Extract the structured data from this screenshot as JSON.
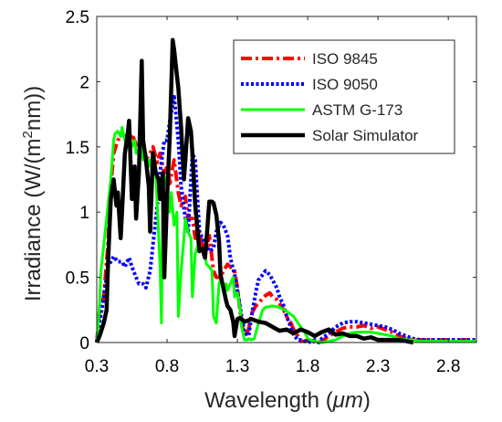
{
  "chart_data": {
    "type": "line",
    "title": "",
    "xlabel_prefix": "Wavelength (",
    "xlabel_unit": "μm",
    "xlabel_suffix": ")",
    "ylabel_prefix": "Irradiance (W/(m",
    "ylabel_sup": "2",
    "ylabel_suffix": "nm))",
    "xlim": [
      0.3,
      3.0
    ],
    "ylim": [
      0,
      2.5
    ],
    "xticks": [
      0.3,
      0.8,
      1.3,
      1.8,
      2.3,
      2.8
    ],
    "xtick_labels": [
      "0.3",
      "0.8",
      "1.3",
      "1.8",
      "2.3",
      "2.8"
    ],
    "yticks": [
      0,
      0.5,
      1,
      1.5,
      2,
      2.5
    ],
    "ytick_labels": [
      "0",
      "0.5",
      "1",
      "1.5",
      "2",
      "2.5"
    ],
    "legend_position": "top-right",
    "series": [
      {
        "name": "ISO 9845",
        "color": "#ff0000",
        "dash": "dashdot",
        "x": [
          0.3,
          0.32,
          0.35,
          0.38,
          0.4,
          0.42,
          0.45,
          0.48,
          0.5,
          0.53,
          0.55,
          0.58,
          0.6,
          0.63,
          0.65,
          0.68,
          0.7,
          0.73,
          0.75,
          0.78,
          0.8,
          0.82,
          0.85,
          0.88,
          0.9,
          0.93,
          0.95,
          0.98,
          1.0,
          1.03,
          1.05,
          1.08,
          1.1,
          1.13,
          1.15,
          1.18,
          1.2,
          1.23,
          1.25,
          1.28,
          1.3,
          1.33,
          1.35,
          1.38,
          1.4,
          1.43,
          1.45,
          1.48,
          1.5,
          1.53,
          1.55,
          1.58,
          1.6,
          1.63,
          1.65,
          1.68,
          1.7,
          1.73,
          1.75,
          1.78,
          1.8,
          1.83,
          1.85,
          1.88,
          1.9,
          1.95,
          2.0,
          2.05,
          2.1,
          2.15,
          2.2,
          2.25,
          2.3,
          2.35,
          2.4,
          2.45,
          2.5,
          2.55,
          2.6,
          2.7,
          2.8,
          2.9,
          3.0
        ],
        "y": [
          0.0,
          0.25,
          0.35,
          0.75,
          1.2,
          1.45,
          1.55,
          1.6,
          1.58,
          1.55,
          1.6,
          1.52,
          1.5,
          1.42,
          1.4,
          1.45,
          1.5,
          1.38,
          1.45,
          1.3,
          1.35,
          1.22,
          1.4,
          1.15,
          1.05,
          1.12,
          0.95,
          0.95,
          0.8,
          0.85,
          0.75,
          0.72,
          0.82,
          0.55,
          0.5,
          0.5,
          0.55,
          0.6,
          0.58,
          0.55,
          0.42,
          0.15,
          0.05,
          0.1,
          0.22,
          0.28,
          0.3,
          0.34,
          0.36,
          0.38,
          0.35,
          0.33,
          0.3,
          0.25,
          0.2,
          0.15,
          0.1,
          0.05,
          0.01,
          0.01,
          0.02,
          0.0,
          0.01,
          0.0,
          0.01,
          0.05,
          0.08,
          0.11,
          0.12,
          0.12,
          0.13,
          0.11,
          0.12,
          0.1,
          0.08,
          0.05,
          0.03,
          0.02,
          0.02,
          0.02,
          0.02,
          0.02,
          0.02
        ]
      },
      {
        "name": "ISO 9050",
        "color": "#0000ff",
        "dash": "dotted",
        "x": [
          0.3,
          0.32,
          0.35,
          0.38,
          0.4,
          0.42,
          0.45,
          0.48,
          0.5,
          0.53,
          0.55,
          0.58,
          0.6,
          0.63,
          0.65,
          0.68,
          0.7,
          0.73,
          0.75,
          0.78,
          0.8,
          0.82,
          0.85,
          0.88,
          0.9,
          0.93,
          0.95,
          0.98,
          1.0,
          1.03,
          1.05,
          1.08,
          1.1,
          1.13,
          1.15,
          1.18,
          1.2,
          1.23,
          1.25,
          1.28,
          1.3,
          1.33,
          1.35,
          1.38,
          1.4,
          1.43,
          1.45,
          1.48,
          1.5,
          1.53,
          1.55,
          1.58,
          1.6,
          1.63,
          1.65,
          1.68,
          1.7,
          1.73,
          1.75,
          1.78,
          1.8,
          1.83,
          1.85,
          1.88,
          1.9,
          1.95,
          2.0,
          2.05,
          2.1,
          2.15,
          2.2,
          2.25,
          2.3,
          2.35,
          2.4,
          2.45,
          2.5,
          2.55,
          2.6,
          2.7,
          2.8,
          2.9,
          3.0
        ],
        "y": [
          0.0,
          0.15,
          0.35,
          0.58,
          0.62,
          0.66,
          0.62,
          0.62,
          0.58,
          0.65,
          0.58,
          0.5,
          0.45,
          0.45,
          0.42,
          0.55,
          0.75,
          1.05,
          1.3,
          1.55,
          1.55,
          1.7,
          1.9,
          1.55,
          1.2,
          0.95,
          0.85,
          1.45,
          1.4,
          0.85,
          0.8,
          0.75,
          0.7,
          0.72,
          0.85,
          0.92,
          0.9,
          0.82,
          0.65,
          0.52,
          0.4,
          0.2,
          0.08,
          0.05,
          0.2,
          0.38,
          0.48,
          0.52,
          0.55,
          0.52,
          0.48,
          0.42,
          0.35,
          0.28,
          0.2,
          0.12,
          0.06,
          0.02,
          0.02,
          0.01,
          0.0,
          0.01,
          0.02,
          0.0,
          0.03,
          0.07,
          0.12,
          0.15,
          0.16,
          0.16,
          0.15,
          0.14,
          0.13,
          0.12,
          0.1,
          0.07,
          0.05,
          0.03,
          0.02,
          0.02,
          0.02,
          0.02,
          0.02
        ]
      },
      {
        "name": "ASTM G-173",
        "color": "#00ff00",
        "dash": "solid",
        "x": [
          0.3,
          0.32,
          0.33,
          0.35,
          0.37,
          0.38,
          0.4,
          0.42,
          0.43,
          0.45,
          0.47,
          0.48,
          0.5,
          0.52,
          0.53,
          0.55,
          0.57,
          0.58,
          0.6,
          0.62,
          0.63,
          0.65,
          0.67,
          0.68,
          0.7,
          0.72,
          0.73,
          0.75,
          0.76,
          0.77,
          0.78,
          0.8,
          0.82,
          0.83,
          0.85,
          0.87,
          0.88,
          0.9,
          0.92,
          0.93,
          0.95,
          0.97,
          0.98,
          1.0,
          1.02,
          1.03,
          1.05,
          1.07,
          1.08,
          1.1,
          1.12,
          1.13,
          1.15,
          1.17,
          1.18,
          1.2,
          1.22,
          1.23,
          1.25,
          1.27,
          1.28,
          1.3,
          1.32,
          1.33,
          1.35,
          1.37,
          1.38,
          1.4,
          1.42,
          1.45,
          1.48,
          1.5,
          1.55,
          1.6,
          1.65,
          1.7,
          1.75,
          1.78,
          1.8,
          1.82,
          1.85,
          1.9,
          1.95,
          2.0,
          2.05,
          2.1,
          2.15,
          2.2,
          2.25,
          2.3,
          2.35,
          2.4,
          2.45,
          2.5,
          2.55,
          2.6,
          2.7,
          2.8,
          2.9,
          3.0
        ],
        "y": [
          0.0,
          0.3,
          0.55,
          0.75,
          0.95,
          1.05,
          1.25,
          1.55,
          1.6,
          1.62,
          1.58,
          1.65,
          1.55,
          1.5,
          1.58,
          1.5,
          1.55,
          1.45,
          1.48,
          1.52,
          1.4,
          1.45,
          1.35,
          1.4,
          1.3,
          1.3,
          1.05,
          0.6,
          0.15,
          1.1,
          1.28,
          1.2,
          1.0,
          1.15,
          0.9,
          1.0,
          0.2,
          0.55,
          0.8,
          0.95,
          0.85,
          0.8,
          0.35,
          0.68,
          0.75,
          0.7,
          0.72,
          0.68,
          0.6,
          0.58,
          0.55,
          0.2,
          0.15,
          0.45,
          0.48,
          0.42,
          0.45,
          0.4,
          0.45,
          0.5,
          0.35,
          0.38,
          0.25,
          0.12,
          0.02,
          0.02,
          0.03,
          0.02,
          0.03,
          0.15,
          0.25,
          0.27,
          0.28,
          0.27,
          0.24,
          0.2,
          0.12,
          0.08,
          0.03,
          0.02,
          0.01,
          0.0,
          0.01,
          0.02,
          0.05,
          0.07,
          0.08,
          0.08,
          0.08,
          0.07,
          0.06,
          0.05,
          0.03,
          0.02,
          0.02,
          0.01,
          0.01,
          0.01,
          0.01,
          0.01
        ]
      },
      {
        "name": "Solar Simulator",
        "color": "#000000",
        "dash": "solid",
        "x": [
          0.3,
          0.32,
          0.35,
          0.37,
          0.38,
          0.4,
          0.42,
          0.44,
          0.45,
          0.47,
          0.48,
          0.5,
          0.52,
          0.53,
          0.55,
          0.57,
          0.58,
          0.6,
          0.62,
          0.63,
          0.65,
          0.67,
          0.68,
          0.7,
          0.72,
          0.74,
          0.75,
          0.77,
          0.78,
          0.8,
          0.82,
          0.84,
          0.85,
          0.87,
          0.88,
          0.9,
          0.92,
          0.93,
          0.95,
          0.97,
          0.98,
          1.0,
          1.02,
          1.03,
          1.05,
          1.07,
          1.08,
          1.1,
          1.12,
          1.13,
          1.15,
          1.17,
          1.18,
          1.2,
          1.22,
          1.23,
          1.25,
          1.27,
          1.28,
          1.3,
          1.32,
          1.33,
          1.35,
          1.38,
          1.4,
          1.45,
          1.5,
          1.55,
          1.6,
          1.65,
          1.7,
          1.75,
          1.8,
          1.85,
          1.9,
          1.95,
          2.0,
          2.05,
          2.1,
          2.15,
          2.2,
          2.25,
          2.3,
          2.35,
          2.4,
          2.45,
          2.5,
          2.55
        ],
        "y": [
          0.0,
          0.05,
          0.15,
          0.25,
          0.6,
          1.1,
          1.25,
          1.05,
          1.15,
          0.8,
          1.0,
          1.45,
          1.6,
          1.7,
          1.1,
          1.35,
          0.95,
          1.3,
          2.16,
          1.55,
          1.4,
          1.2,
          0.85,
          1.45,
          1.3,
          1.25,
          1.1,
          1.3,
          0.5,
          1.1,
          1.6,
          2.32,
          2.25,
          2.05,
          1.95,
          1.65,
          1.25,
          1.4,
          1.72,
          1.62,
          1.45,
          1.05,
          0.82,
          0.7,
          0.72,
          0.65,
          0.78,
          1.08,
          1.08,
          1.07,
          0.98,
          0.78,
          0.52,
          0.42,
          0.32,
          0.28,
          0.25,
          0.16,
          0.05,
          0.18,
          0.19,
          0.18,
          0.16,
          0.17,
          0.18,
          0.16,
          0.15,
          0.12,
          0.09,
          0.1,
          0.07,
          0.1,
          0.08,
          0.05,
          0.08,
          0.1,
          0.06,
          0.07,
          0.05,
          0.05,
          0.03,
          0.04,
          0.02,
          0.02,
          0.02,
          0.02,
          0.01,
          0.0
        ]
      }
    ]
  }
}
